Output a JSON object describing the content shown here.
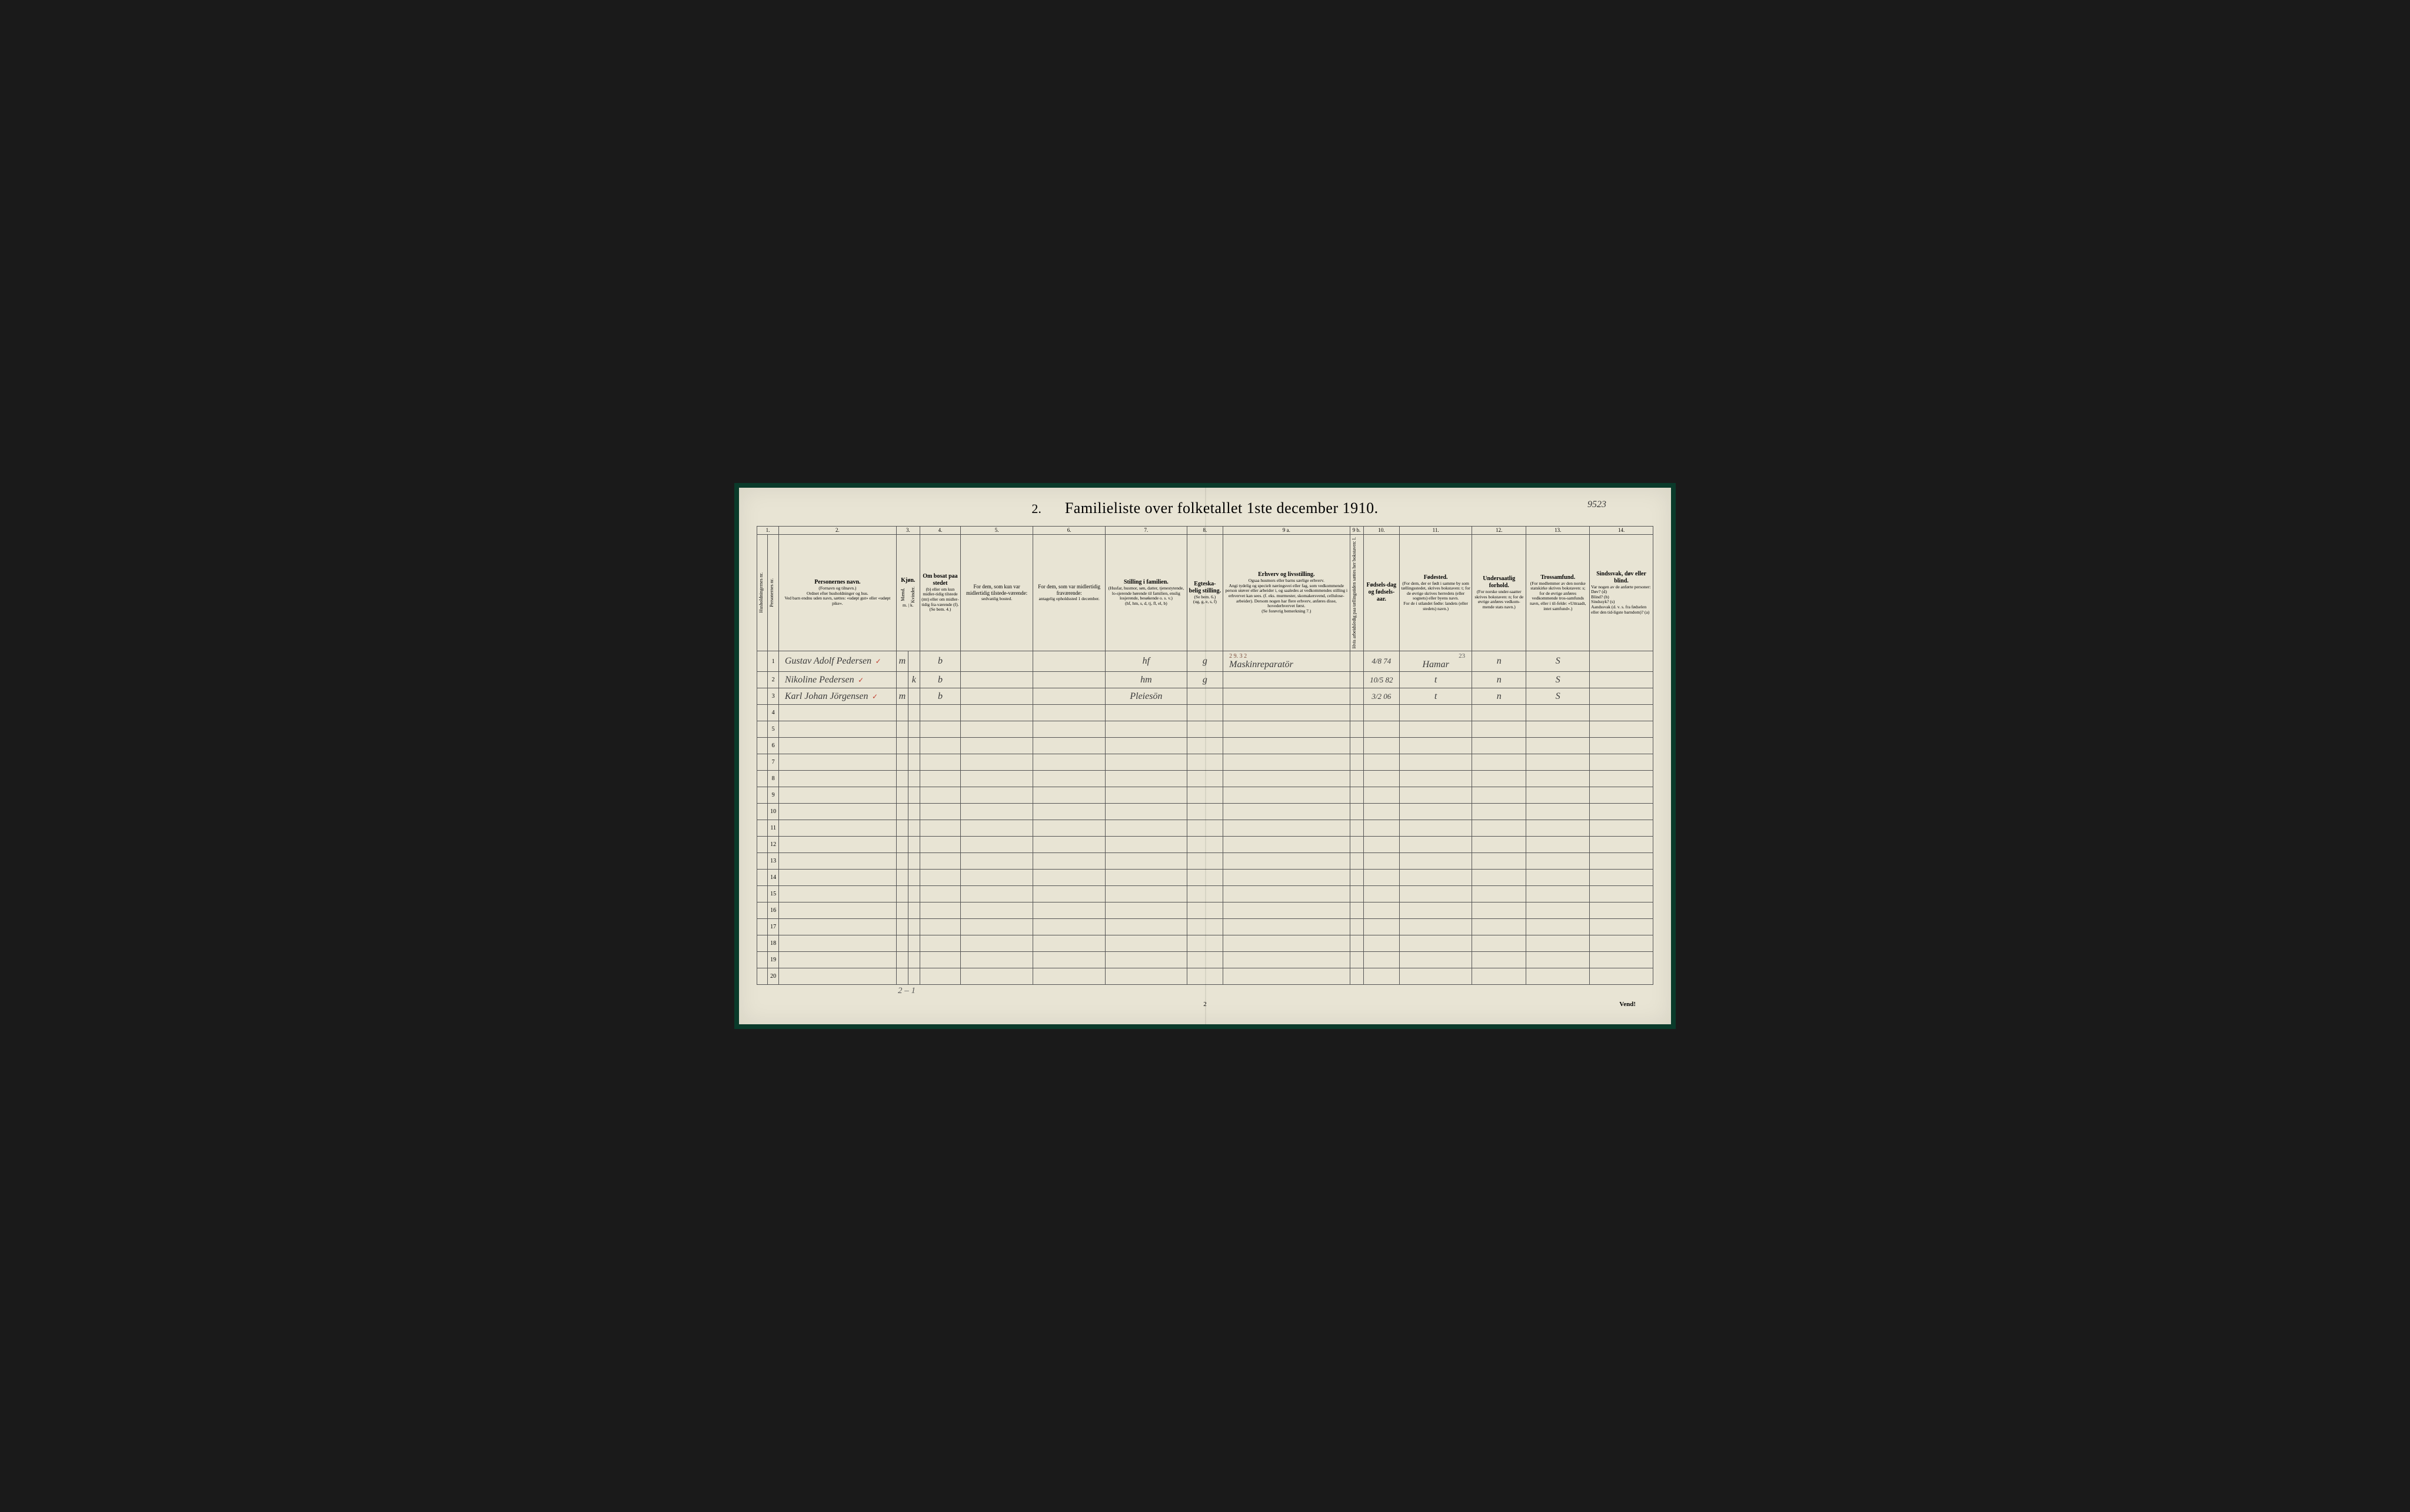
{
  "title_prefix": "2.",
  "title": "Familieliste over folketallet 1ste december 1910.",
  "top_annotation": "9523",
  "column_numbers": [
    "1.",
    "2.",
    "3.",
    "4.",
    "5.",
    "6.",
    "7.",
    "8.",
    "9 a.",
    "9 b.",
    "10.",
    "11.",
    "12.",
    "13.",
    "14."
  ],
  "headers": {
    "c1a": "Husholdningernes nr.",
    "c1b": "Personernes nr.",
    "c2_title": "Personernes navn.",
    "c2_sub": "(Fornavn og tilnavn.)\nOrdnet efter husholdninger og hus.\nVed barn endnu uden navn, sættes: «udøpt gut» eller «udøpt pike».",
    "c3_title": "Kjøn.",
    "c3_m": "Mænd.",
    "c3_k": "Kvinder.",
    "c3_sub": "m. | k.",
    "c4_title": "Om bosat paa stedet",
    "c4_sub": "(b) eller om kun midler-tidig tilstede (mt) eller om midler-tidig fra-værende (f).\n(Se bem. 4.)",
    "c5_title": "For dem, som kun var midlertidig tilstede-værende:",
    "c5_sub": "sedvanlig bosted.",
    "c6_title": "For dem, som var midlertidig fraværende:",
    "c6_sub": "antagelig opholdssted 1 december.",
    "c7_title": "Stilling i familien.",
    "c7_sub": "(Husfar, husmor, søn, datter, tjenestytende, lo-sjerende hørende til familien, enslig losjerende, besøkende o. s. v.)\n(hf, hm, s, d, tj, fl, el, b)",
    "c8_title": "Egteska-belig stilling.",
    "c8_sub": "(Se bem. 6.)\n(ug, g, e, s, f)",
    "c9a_title": "Erhverv og livsstilling.",
    "c9a_sub": "Ogsaa husmors eller barns særlige erhverv.\nAngi tydelig og specielt næringsvei eller fag, som vedkommende person utøver eller arbeider i, og saaledes at vedkommendes stilling i erhvervet kan sees. (f. eks. murmester, skomakersvend, cellulose-arbeider). Dersom nogen har flere erhverv, anføres disse, hovederhvervet først.\n(Se forøvrig bemerkning 7.)",
    "c9b": "Hvis arbeidsledig paa tællingstiden sættes her bokstaven: l.",
    "c10_title": "Fødsels-dag og fødsels-aar.",
    "c11_title": "Fødested.",
    "c11_sub": "(For dem, der er født i samme by som tællingsstedet, skrives bokstaven: t; for de øvrige skrives herredets (eller sognets) eller byens navn.\nFor de i utlandet fødte: landets (eller stedets) navn.)",
    "c12_title": "Undersaatlig forhold.",
    "c12_sub": "(For norske under-saatter skrives bokstaven: n; for de øvrige anføres vedkom-mende stats navn.)",
    "c13_title": "Trossamfund.",
    "c13_sub": "(For medlemmer av den norske statskirke skrives bokstaven: s; for de øvrige anføres vedkommende tros-samfunds navn, eller i til-felde: «Uttraadt, intet samfund».)",
    "c14_title": "Sindssvak, døv eller blind.",
    "c14_sub": "Var nogen av de anførte personer:\nDøv? (d)\nBlind? (b)\nSindssyk? (s)\nAandssvak (d. v. s. fra fødselen eller den tid-ligste barndom)? (a)"
  },
  "rows": [
    {
      "num": "1",
      "name": "Gustav Adolf Pedersen",
      "mark": "✓",
      "sex": "m",
      "res": "b",
      "family": "hf",
      "marital": "g",
      "occ_note": "2 9. 3 2",
      "occupation": "Maskinreparatör",
      "birth": "4/8 74",
      "birthplace_note": "23",
      "birthplace": "Hamar",
      "nat": "n",
      "rel": "S"
    },
    {
      "num": "2",
      "name": "Nikoline Pedersen",
      "mark": "✓",
      "sex": "k",
      "res": "b",
      "family": "hm",
      "marital": "g",
      "occupation": "",
      "birth": "10/5 82",
      "birthplace": "t",
      "nat": "n",
      "rel": "S"
    },
    {
      "num": "3",
      "name": "Karl Johan Jörgensen",
      "mark": "✓",
      "sex": "m",
      "res": "b",
      "family": "Pleiesön",
      "marital": "",
      "occupation": "",
      "birth": "3/2 06",
      "birthplace": "t",
      "nat": "n",
      "rel": "S"
    }
  ],
  "empty_rows": [
    "4",
    "5",
    "6",
    "7",
    "8",
    "9",
    "10",
    "11",
    "12",
    "13",
    "14",
    "15",
    "16",
    "17",
    "18",
    "19",
    "20"
  ],
  "bottom_tally": "2 – 1",
  "page_number": "2",
  "vend": "Vend!"
}
